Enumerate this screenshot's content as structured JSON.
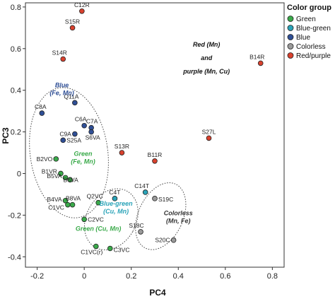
{
  "chart_data": {
    "type": "scatter",
    "xlabel": "PC4",
    "ylabel": "PC3",
    "xlim": [
      -0.25,
      0.85
    ],
    "ylim": [
      -0.45,
      0.82
    ],
    "xticks": [
      -0.2,
      0.0,
      0.2,
      0.4,
      0.6,
      0.8
    ],
    "yticks": [
      -0.4,
      -0.2,
      0,
      0.2,
      0.4,
      0.6,
      0.8
    ],
    "xtick_labels": [
      "-0.2",
      "0",
      "0.2",
      "0.4",
      "0.6",
      "0.8"
    ],
    "ytick_labels": [
      "-0.4",
      "-0.2",
      "0",
      "0.2",
      "0.4",
      "0.6",
      "0.8"
    ],
    "legend": {
      "title": "Color group",
      "position": "top-right",
      "items": [
        {
          "name": "Green",
          "color": "#3aaa4a"
        },
        {
          "name": "Blue-green",
          "color": "#2aa3b8"
        },
        {
          "name": "Blue",
          "color": "#2f4f96"
        },
        {
          "name": "Colorless",
          "color": "#9a9a9a"
        },
        {
          "name": "Red/purple",
          "color": "#d9412e"
        }
      ]
    },
    "series": [
      {
        "name": "Green",
        "color": "#3aaa4a",
        "points": [
          {
            "label": "B2VO",
            "x": -0.12,
            "y": 0.07
          },
          {
            "label": "B1VR",
            "x": -0.1,
            "y": 0.0
          },
          {
            "label": "B5VA",
            "x": -0.08,
            "y": -0.02
          },
          {
            "label": "B6VA",
            "x": -0.06,
            "y": -0.03
          },
          {
            "label": "B4VA",
            "x": -0.08,
            "y": -0.13
          },
          {
            "label": "C1VC",
            "x": -0.07,
            "y": -0.15
          },
          {
            "label": "B8VA",
            "x": -0.05,
            "y": -0.15
          },
          {
            "label": "Q2VC",
            "x": 0.06,
            "y": -0.14
          },
          {
            "label": "C2VC",
            "x": 0.0,
            "y": -0.22
          },
          {
            "label": "C1VC(r)",
            "x": 0.05,
            "y": -0.35
          },
          {
            "label": "C3VC",
            "x": 0.11,
            "y": -0.36
          }
        ]
      },
      {
        "name": "Blue-green",
        "color": "#2aa3b8",
        "points": [
          {
            "label": "C4T",
            "x": 0.13,
            "y": -0.12
          },
          {
            "label": "C14T",
            "x": 0.26,
            "y": -0.09
          }
        ]
      },
      {
        "name": "Blue",
        "color": "#2f4f96",
        "points": [
          {
            "label": "Q11A",
            "x": -0.04,
            "y": 0.34
          },
          {
            "label": "C8A",
            "x": -0.18,
            "y": 0.29
          },
          {
            "label": "C6A",
            "x": 0.0,
            "y": 0.23
          },
          {
            "label": "C7A",
            "x": 0.03,
            "y": 0.22
          },
          {
            "label": "C9A",
            "x": -0.04,
            "y": 0.19
          },
          {
            "label": "S6VA",
            "x": 0.03,
            "y": 0.2
          },
          {
            "label": "S25A",
            "x": -0.09,
            "y": 0.16
          }
        ]
      },
      {
        "name": "Colorless",
        "color": "#9a9a9a",
        "points": [
          {
            "label": "S19C",
            "x": 0.3,
            "y": -0.12
          },
          {
            "label": "S18C",
            "x": 0.24,
            "y": -0.28
          },
          {
            "label": "S20C",
            "x": 0.38,
            "y": -0.32
          }
        ]
      },
      {
        "name": "Red/purple",
        "color": "#d9412e",
        "points": [
          {
            "label": "C12R",
            "x": -0.01,
            "y": 0.78
          },
          {
            "label": "S15R",
            "x": -0.05,
            "y": 0.7
          },
          {
            "label": "S14R",
            "x": -0.09,
            "y": 0.55
          },
          {
            "label": "B14R",
            "x": 0.75,
            "y": 0.53
          },
          {
            "label": "S27L",
            "x": 0.53,
            "y": 0.17
          },
          {
            "label": "S13R",
            "x": 0.16,
            "y": 0.1
          },
          {
            "label": "B11R",
            "x": 0.3,
            "y": 0.06
          }
        ]
      }
    ],
    "annotations": [
      {
        "lines": [
          "Red (Mn)",
          "and",
          "purple (Mn, Cu)"
        ],
        "color": "#111111"
      },
      {
        "lines": [
          "Blue",
          "(Fe, Mn)"
        ],
        "color": "#2f4f96"
      },
      {
        "lines": [
          "Green",
          "(Fe, Mn)"
        ],
        "color": "#3aaa4a"
      },
      {
        "lines": [
          "Blue-green",
          "(Cu, Mn)"
        ],
        "color": "#2aa3b8"
      },
      {
        "lines": [
          "Green (Cu, Mn)"
        ],
        "color": "#3aaa4a"
      },
      {
        "lines": [
          "Colorless",
          "(Mn, Fe)"
        ],
        "color": "#333333"
      }
    ]
  }
}
